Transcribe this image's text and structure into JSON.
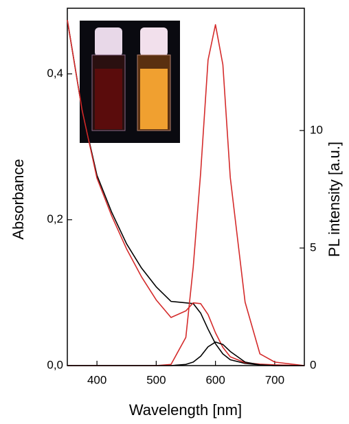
{
  "chart_data": {
    "type": "line",
    "xlabel": "Wavelength [nm]",
    "ylabel": "Absorbance",
    "y2label": "PL intensity [a.u.]",
    "x": [
      350,
      375,
      400,
      425,
      450,
      475,
      500,
      525,
      550,
      562.5,
      575,
      587.5,
      600,
      612.5,
      625,
      650,
      675,
      700,
      750
    ],
    "series": [
      {
        "color": "#000000",
        "axis": "y",
        "values": [
          0.474,
          0.35,
          0.261,
          0.21,
          0.167,
          0.134,
          0.108,
          0.088,
          0.086,
          0.085,
          0.072,
          0.05,
          0.03,
          0.016,
          0.008,
          0.003,
          0.001,
          0,
          0
        ]
      },
      {
        "color": "#d42a2a",
        "axis": "y",
        "values": [
          0.474,
          0.35,
          0.257,
          0.205,
          0.16,
          0.122,
          0.09,
          0.066,
          0.075,
          0.086,
          0.085,
          0.07,
          0.045,
          0.025,
          0.012,
          0.004,
          0.002,
          0.001,
          0
        ]
      },
      {
        "color": "#d42a2a",
        "axis": "y2",
        "values": [
          0,
          0,
          0,
          0,
          0,
          0,
          0,
          0.05,
          1.2,
          4.2,
          8.2,
          13.0,
          14.5,
          12.8,
          8.0,
          2.7,
          0.5,
          0.15,
          0
        ]
      },
      {
        "color": "#000000",
        "axis": "y2",
        "values": [
          0,
          0,
          0,
          0,
          0,
          0,
          0,
          0,
          0.05,
          0.15,
          0.4,
          0.8,
          1.0,
          0.9,
          0.6,
          0.15,
          0.03,
          0,
          0
        ]
      }
    ],
    "xlim": [
      350,
      750
    ],
    "xticks": [
      400,
      500,
      600,
      700
    ],
    "ylim": [
      0,
      0.49
    ],
    "yticks": [
      {
        "value": 0,
        "label": "0,0"
      },
      {
        "value": 0.2,
        "label": "0,2"
      },
      {
        "value": 0.4,
        "label": "0,4"
      }
    ],
    "y2lim": [
      0,
      15.2
    ],
    "y2ticks": [
      0,
      5,
      10
    ]
  }
}
